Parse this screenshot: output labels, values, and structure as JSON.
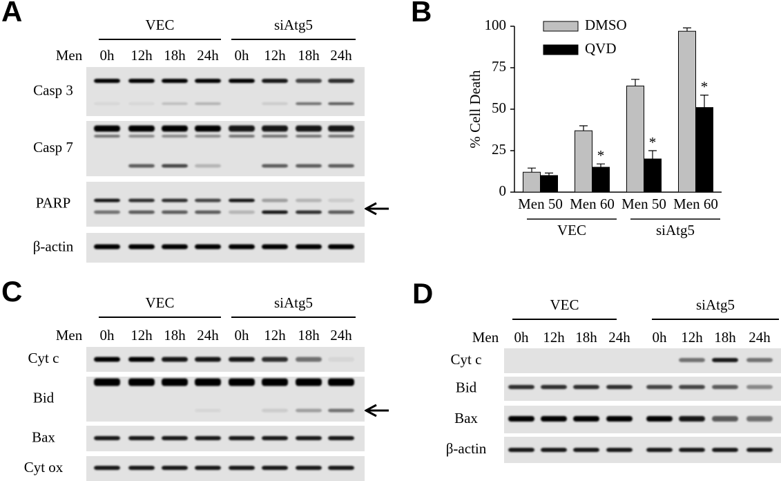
{
  "panel_a": {
    "label": "A",
    "groups": [
      "VEC",
      "siAtg5"
    ],
    "treatment": "Men",
    "timepoints": [
      "0h",
      "12h",
      "18h",
      "24h",
      "0h",
      "12h",
      "18h",
      "24h"
    ],
    "blots": [
      "Casp 3",
      "Casp 7",
      "PARP",
      "β-actin"
    ]
  },
  "chart_data": {
    "type": "bar",
    "label": "B",
    "y_label": "% Cell Death",
    "categories": [
      "Men 50",
      "Men 60",
      "Men 50",
      "Men 60"
    ],
    "groups": [
      "VEC",
      "siAtg5"
    ],
    "series": [
      {
        "name": "DMSO",
        "color": "#c0c0c0",
        "values": [
          12,
          37,
          64,
          97
        ],
        "errors": [
          2.5,
          3,
          4,
          2
        ]
      },
      {
        "name": "QVD",
        "color": "#000000",
        "values": [
          10,
          15,
          20,
          51
        ],
        "errors": [
          1.5,
          2,
          5,
          7.5
        ],
        "significance": [
          null,
          "*",
          "*",
          "*"
        ]
      }
    ],
    "ylim": [
      0,
      100
    ],
    "yticks": [
      0,
      25,
      50,
      75,
      100
    ],
    "grid": false,
    "legend": "top-left"
  },
  "panel_c": {
    "label": "C",
    "groups": [
      "VEC",
      "siAtg5"
    ],
    "treatment": "Men",
    "timepoints": [
      "0h",
      "12h",
      "18h",
      "24h",
      "0h",
      "12h",
      "18h",
      "24h"
    ],
    "blots": [
      "Cyt c",
      "Bid",
      "Bax",
      "Cyt ox"
    ]
  },
  "panel_d": {
    "label": "D",
    "groups": [
      "VEC",
      "siAtg5"
    ],
    "treatment": "Men",
    "timepoints": [
      "0h",
      "12h",
      "18h",
      "24h",
      "0h",
      "12h",
      "18h",
      "24h"
    ],
    "blots": [
      "Cyt c",
      "Bid",
      "Bax",
      "β-actin"
    ]
  }
}
